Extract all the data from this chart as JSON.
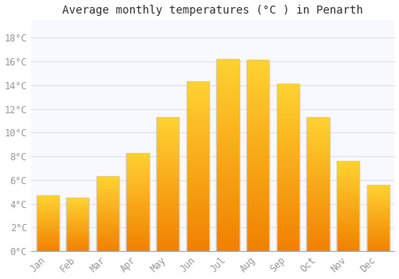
{
  "title": "Average monthly temperatures (°C ) in Penarth",
  "months": [
    "Jan",
    "Feb",
    "Mar",
    "Apr",
    "May",
    "Jun",
    "Jul",
    "Aug",
    "Sep",
    "Oct",
    "Nov",
    "Dec"
  ],
  "values": [
    4.7,
    4.5,
    6.3,
    8.3,
    11.3,
    14.3,
    16.2,
    16.1,
    14.1,
    11.3,
    7.6,
    5.6
  ],
  "bar_color_top": "#FFC020",
  "bar_color_bottom": "#F08000",
  "bar_color_edge": "#C8C8C8",
  "background_color": "#FFFFFF",
  "plot_bg_color": "#F8F8FF",
  "grid_color": "#E0E0E8",
  "ytick_labels": [
    "0°C",
    "2°C",
    "4°C",
    "6°C",
    "8°C",
    "10°C",
    "12°C",
    "14°C",
    "16°C",
    "18°C"
  ],
  "ytick_values": [
    0,
    2,
    4,
    6,
    8,
    10,
    12,
    14,
    16,
    18
  ],
  "ylim": [
    0,
    19.5
  ],
  "title_fontsize": 10,
  "tick_fontsize": 8.5,
  "font_family": "monospace",
  "tick_color": "#999999",
  "bar_width": 0.75
}
